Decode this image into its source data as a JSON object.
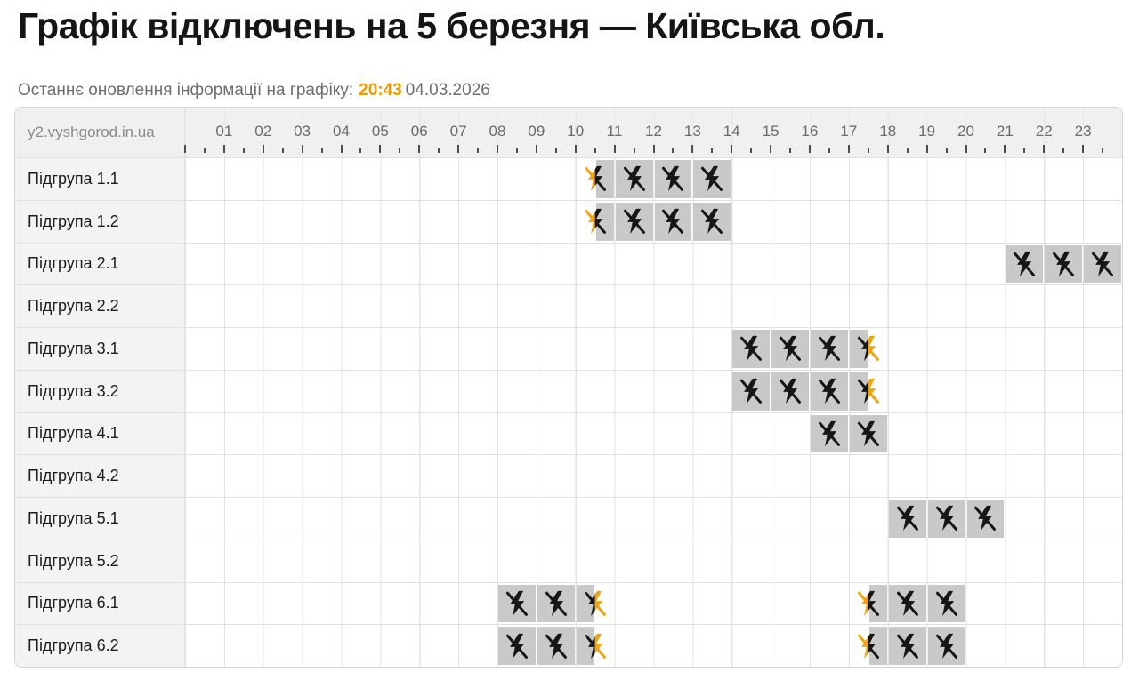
{
  "title": "Графік відключень на 5 березня — Київська обл.",
  "subtitle": {
    "label": "Останнє оновлення інформації на графіку:",
    "time": "20:43",
    "date": "04.03.2026"
  },
  "watermark": "y2.vyshgorod.in.ua",
  "row_label_prefix": "Підгрупа",
  "chart_data": {
    "type": "table",
    "subtype": "gantt-outage-schedule",
    "title": "Графік відключень на 5 березня — Київська обл.",
    "updated_time": "20:43",
    "updated_date": "04.03.2026",
    "x_axis": {
      "unit": "hours",
      "min": 0,
      "max": 24,
      "tick_labels": [
        "01",
        "02",
        "03",
        "04",
        "05",
        "06",
        "07",
        "08",
        "09",
        "10",
        "11",
        "12",
        "13",
        "14",
        "15",
        "16",
        "17",
        "18",
        "19",
        "20",
        "21",
        "22",
        "23"
      ],
      "major_tick_every": 1,
      "minor_tick_every": 0.5,
      "grid": true
    },
    "categories": [
      "Підгрупа 1.1",
      "Підгрупа 1.2",
      "Підгрупа 2.1",
      "Підгрупа 2.2",
      "Підгрупа 3.1",
      "Підгрупа 3.2",
      "Підгрупа 4.1",
      "Підгрупа 4.2",
      "Підгрупа 5.1",
      "Підгрупа 5.2",
      "Підгрупа 6.1",
      "Підгрупа 6.2"
    ],
    "rows": [
      {
        "label": "Підгрупа 1.1",
        "intervals": [
          {
            "from": 10.5,
            "to": 14
          }
        ]
      },
      {
        "label": "Підгрупа 1.2",
        "intervals": [
          {
            "from": 10.5,
            "to": 14
          }
        ]
      },
      {
        "label": "Підгрупа 2.1",
        "intervals": [
          {
            "from": 21,
            "to": 24
          }
        ]
      },
      {
        "label": "Підгрупа 2.2",
        "intervals": []
      },
      {
        "label": "Підгрупа 3.1",
        "intervals": [
          {
            "from": 14,
            "to": 17.5
          }
        ]
      },
      {
        "label": "Підгрупа 3.2",
        "intervals": [
          {
            "from": 14,
            "to": 17.5
          }
        ]
      },
      {
        "label": "Підгрупа 4.1",
        "intervals": [
          {
            "from": 16,
            "to": 18
          }
        ]
      },
      {
        "label": "Підгрупа 4.2",
        "intervals": []
      },
      {
        "label": "Підгрупа 5.1",
        "intervals": [
          {
            "from": 18,
            "to": 21
          }
        ]
      },
      {
        "label": "Підгрупа 5.2",
        "intervals": []
      },
      {
        "label": "Підгрупа 6.1",
        "intervals": [
          {
            "from": 8,
            "to": 10.5
          },
          {
            "from": 17.5,
            "to": 20
          }
        ]
      },
      {
        "label": "Підгрупа 6.2",
        "intervals": [
          {
            "from": 8,
            "to": 10.5
          },
          {
            "from": 17.5,
            "to": 20
          }
        ]
      }
    ],
    "legend": {
      "outage_icon": "crossed-lightning",
      "full_hour_icon_meaning": "power off for this hour",
      "half_hour_boundary_icon_meaning": "outage starts/ends at half hour"
    }
  },
  "colors": {
    "accent_time": "#f29b00",
    "outage_cell": "#c9c9c9",
    "icon_black": "#161616",
    "icon_orange": "#efa40f",
    "tick": "#4c4c4c",
    "header_bg": "#f0f0ee",
    "label_col_bg": "#f3f3f1"
  }
}
